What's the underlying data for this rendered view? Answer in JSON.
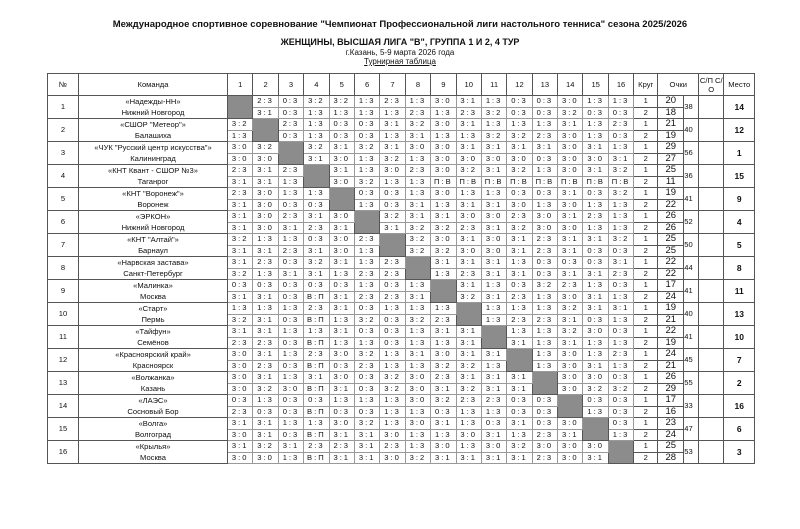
{
  "header": {
    "title": "Международное спортивное соревнование \"Чемпионат Профессиональной лиги настольного тенниса\" сезона 2025/2026",
    "subtitle": "ЖЕНЩИНЫ, ВЫСШАЯ ЛИГА \"В\", ГРУППА 1 И 2, 4 ТУР",
    "location": "г.Казань, 5-9 марта 2026 года",
    "table_title": "Турнирная таблица"
  },
  "columns": {
    "num": "№",
    "team": "Команда",
    "rounds": [
      "1",
      "2",
      "3",
      "4",
      "5",
      "6",
      "7",
      "8",
      "9",
      "10",
      "11",
      "12",
      "13",
      "14",
      "15",
      "16"
    ],
    "round": "Круг",
    "points": "Очки",
    "sp": "С/П С/О",
    "place": "Место"
  },
  "teams": [
    {
      "num": "1",
      "name": "«Надежды-НН»",
      "city": "Нижний Новгород",
      "r1": [
        "",
        "2:3",
        "0:3",
        "3:2",
        "3:2",
        "1:3",
        "2:3",
        "1:3",
        "3:0",
        "3:1",
        "1:3",
        "0:3",
        "0:3",
        "3:0",
        "1:3",
        "1:3"
      ],
      "r2": [
        "",
        "3:1",
        "0:3",
        "1:3",
        "1:3",
        "1:3",
        "1:3",
        "2:3",
        "1:3",
        "2:3",
        "3:2",
        "0:3",
        "0:3",
        "3:2",
        "0:3",
        "0:3"
      ],
      "p1": "20",
      "p2": "18",
      "total": "38",
      "sp": "",
      "place": "14"
    },
    {
      "num": "2",
      "name": "«СШОР \"Метеор\"»",
      "city": "Балашиха",
      "r1": [
        "3:2",
        "",
        "2:3",
        "1:3",
        "0:3",
        "0:3",
        "3:1",
        "3:2",
        "3:0",
        "3:1",
        "1:3",
        "1:3",
        "1:3",
        "3:1",
        "1:3",
        "2:3"
      ],
      "r2": [
        "1:3",
        "",
        "0:3",
        "1:3",
        "0:3",
        "0:3",
        "1:3",
        "3:1",
        "1:3",
        "1:3",
        "3:2",
        "3:2",
        "2:3",
        "3:0",
        "1:3",
        "0:3"
      ],
      "p1": "21",
      "p2": "19",
      "total": "40",
      "sp": "",
      "place": "12"
    },
    {
      "num": "3",
      "name": "«ЧУК \"Русский центр искусства\"»",
      "city": "Калининград",
      "r1": [
        "3:0",
        "3:2",
        "",
        "3:2",
        "3:1",
        "3:2",
        "3:1",
        "3:0",
        "3:0",
        "3:1",
        "3:1",
        "3:1",
        "3:1",
        "3:0",
        "3:1",
        "1:3"
      ],
      "r2": [
        "3:0",
        "3:0",
        "",
        "3:1",
        "3:0",
        "1:3",
        "3:2",
        "1:3",
        "3:0",
        "3:0",
        "3:0",
        "3:0",
        "0:3",
        "3:0",
        "3:0",
        "3:1"
      ],
      "p1": "29",
      "p2": "27",
      "total": "56",
      "sp": "",
      "place": "1"
    },
    {
      "num": "4",
      "name": "«КНТ Квант - СШОР №3»",
      "city": "Таганрог",
      "r1": [
        "2:3",
        "3:1",
        "2:3",
        "",
        "3:1",
        "1:3",
        "3:0",
        "2:3",
        "3:0",
        "3:2",
        "3:1",
        "3:2",
        "1:3",
        "3:0",
        "3:1",
        "3:2"
      ],
      "r2": [
        "3:1",
        "3:1",
        "1:3",
        "",
        "3:0",
        "3:2",
        "1:3",
        "1:3",
        "П:В",
        "П:В",
        "П:В",
        "П:В",
        "П:В",
        "П:В",
        "П:В",
        "П:В"
      ],
      "p1": "25",
      "p2": "11",
      "total": "36",
      "sp": "",
      "place": "15"
    },
    {
      "num": "5",
      "name": "«КНТ \"Воронеж\"»",
      "city": "Воронеж",
      "r1": [
        "2:3",
        "3:0",
        "1:3",
        "1:3",
        "",
        "0:3",
        "0:3",
        "1:3",
        "3:0",
        "1:3",
        "1:3",
        "0:3",
        "0:3",
        "3:1",
        "0:3",
        "3:2"
      ],
      "r2": [
        "3:1",
        "3:0",
        "0:3",
        "0:3",
        "",
        "1:3",
        "0:3",
        "3:1",
        "1:3",
        "3:1",
        "3:1",
        "3:0",
        "1:3",
        "3:0",
        "1:3",
        "1:3"
      ],
      "p1": "19",
      "p2": "22",
      "total": "41",
      "sp": "",
      "place": "9"
    },
    {
      "num": "6",
      "name": "«ЭРКОН»",
      "city": "Нижний Новгород",
      "r1": [
        "3:1",
        "3:0",
        "2:3",
        "3:1",
        "3:0",
        "",
        "3:2",
        "3:1",
        "3:1",
        "3:0",
        "3:0",
        "2:3",
        "3:0",
        "3:1",
        "2:3",
        "1:3"
      ],
      "r2": [
        "3:1",
        "3:0",
        "3:1",
        "2:3",
        "3:1",
        "",
        "3:1",
        "3:2",
        "3:2",
        "2:3",
        "3:1",
        "3:2",
        "3:0",
        "3:0",
        "1:3",
        "1:3"
      ],
      "p1": "26",
      "p2": "26",
      "total": "52",
      "sp": "",
      "place": "4"
    },
    {
      "num": "7",
      "name": "«КНТ \"Алтай\"»",
      "city": "Барнаул",
      "r1": [
        "3:2",
        "1:3",
        "1:3",
        "0:3",
        "3:0",
        "2:3",
        "",
        "3:2",
        "3:0",
        "3:1",
        "3:0",
        "3:1",
        "2:3",
        "3:1",
        "3:1",
        "3:2"
      ],
      "r2": [
        "3:1",
        "3:1",
        "2:3",
        "3:1",
        "3:0",
        "1:3",
        "",
        "3:2",
        "3:2",
        "3:0",
        "3:0",
        "3:1",
        "2:3",
        "3:1",
        "0:3",
        "0:3"
      ],
      "p1": "25",
      "p2": "25",
      "total": "50",
      "sp": "",
      "place": "5"
    },
    {
      "num": "8",
      "name": "«Нарвская застава»",
      "city": "Санкт-Петербург",
      "r1": [
        "3:1",
        "2:3",
        "0:3",
        "3:2",
        "3:1",
        "1:3",
        "2:3",
        "",
        "3:1",
        "3:1",
        "3:1",
        "1:3",
        "0:3",
        "0:3",
        "0:3",
        "3:1"
      ],
      "r2": [
        "3:2",
        "1:3",
        "3:1",
        "3:1",
        "1:3",
        "2:3",
        "2:3",
        "",
        "1:3",
        "2:3",
        "3:1",
        "3:1",
        "0:3",
        "3:1",
        "3:1",
        "2:3"
      ],
      "p1": "22",
      "p2": "22",
      "total": "44",
      "sp": "",
      "place": "8"
    },
    {
      "num": "9",
      "name": "«Малинка»",
      "city": "Москва",
      "r1": [
        "0:3",
        "0:3",
        "0:3",
        "0:3",
        "0:3",
        "1:3",
        "0:3",
        "1:3",
        "",
        "3:1",
        "1:3",
        "0:3",
        "3:2",
        "2:3",
        "1:3",
        "0:3"
      ],
      "r2": [
        "3:1",
        "3:1",
        "0:3",
        "В:П",
        "3:1",
        "2:3",
        "2:3",
        "3:1",
        "",
        "3:2",
        "3:1",
        "2:3",
        "1:3",
        "3:0",
        "3:1",
        "1:3"
      ],
      "p1": "17",
      "p2": "24",
      "total": "41",
      "sp": "",
      "place": "11"
    },
    {
      "num": "10",
      "name": "«Старт»",
      "city": "Пермь",
      "r1": [
        "1:3",
        "1:3",
        "1:3",
        "2:3",
        "3:1",
        "0:3",
        "1:3",
        "1:3",
        "1:3",
        "",
        "1:3",
        "1:3",
        "1:3",
        "3:2",
        "3:1",
        "3:1"
      ],
      "r2": [
        "3:2",
        "3:1",
        "0:3",
        "В:П",
        "1:3",
        "3:2",
        "0:3",
        "3:2",
        "2:3",
        "",
        "1:3",
        "2:3",
        "2:3",
        "3:1",
        "0:3",
        "1:3"
      ],
      "p1": "19",
      "p2": "21",
      "total": "40",
      "sp": "",
      "place": "13"
    },
    {
      "num": "11",
      "name": "«Тайфун»",
      "city": "Семёнов",
      "r1": [
        "3:1",
        "3:1",
        "1:3",
        "1:3",
        "3:1",
        "0:3",
        "0:3",
        "1:3",
        "3:1",
        "3:1",
        "",
        "1:3",
        "1:3",
        "3:2",
        "3:0",
        "0:3"
      ],
      "r2": [
        "2:3",
        "2:3",
        "0:3",
        "В:П",
        "1:3",
        "1:3",
        "0:3",
        "1:3",
        "1:3",
        "3:1",
        "",
        "3:1",
        "1:3",
        "3:1",
        "1:3",
        "1:3"
      ],
      "p1": "22",
      "p2": "19",
      "total": "41",
      "sp": "",
      "place": "10"
    },
    {
      "num": "12",
      "name": "«Красноярский край»",
      "city": "Красноярск",
      "r1": [
        "3:0",
        "3:1",
        "1:3",
        "2:3",
        "3:0",
        "3:2",
        "1:3",
        "3:1",
        "3:0",
        "3:1",
        "3:1",
        "",
        "1:3",
        "3:0",
        "1:3",
        "2:3"
      ],
      "r2": [
        "3:0",
        "2:3",
        "0:3",
        "В:П",
        "0:3",
        "2:3",
        "1:3",
        "1:3",
        "3:2",
        "3:2",
        "1:3",
        "",
        "1:3",
        "3:0",
        "3:1",
        "1:3"
      ],
      "p1": "24",
      "p2": "21",
      "total": "45",
      "sp": "",
      "place": "7"
    },
    {
      "num": "13",
      "name": "«Волжанка»",
      "city": "Казань",
      "r1": [
        "3:0",
        "3:1",
        "1:3",
        "3:1",
        "3:0",
        "0:3",
        "3:2",
        "3:0",
        "2:3",
        "3:1",
        "3:1",
        "3:1",
        "",
        "3:0",
        "3:0",
        "0:3"
      ],
      "r2": [
        "3:0",
        "3:2",
        "3:0",
        "В:П",
        "3:1",
        "0:3",
        "3:2",
        "3:0",
        "3:1",
        "3:2",
        "3:1",
        "3:1",
        "",
        "3:0",
        "3:2",
        "3:2"
      ],
      "p1": "26",
      "p2": "29",
      "total": "55",
      "sp": "",
      "place": "2"
    },
    {
      "num": "14",
      "name": "«ЛАЭС»",
      "city": "Сосновый Бор",
      "r1": [
        "0:3",
        "1:3",
        "0:3",
        "0:3",
        "1:3",
        "1:3",
        "1:3",
        "3:0",
        "3:2",
        "2:3",
        "2:3",
        "0:3",
        "0:3",
        "",
        "0:3",
        "0:3"
      ],
      "r2": [
        "2:3",
        "0:3",
        "0:3",
        "В:П",
        "0:3",
        "0:3",
        "1:3",
        "1:3",
        "0:3",
        "1:3",
        "1:3",
        "0:3",
        "0:3",
        "",
        "1:3",
        "0:3"
      ],
      "p1": "17",
      "p2": "16",
      "total": "33",
      "sp": "",
      "place": "16"
    },
    {
      "num": "15",
      "name": "«Волга»",
      "city": "Волгоград",
      "r1": [
        "3:1",
        "3:1",
        "1:3",
        "1:3",
        "3:0",
        "3:2",
        "1:3",
        "3:0",
        "3:1",
        "1:3",
        "0:3",
        "3:1",
        "0:3",
        "3:0",
        "",
        "0:3"
      ],
      "r2": [
        "3:0",
        "3:1",
        "0:3",
        "В:П",
        "3:1",
        "3:1",
        "3:0",
        "1:3",
        "1:3",
        "3:0",
        "3:1",
        "1:3",
        "2:3",
        "3:1",
        "",
        "1:3"
      ],
      "p1": "23",
      "p2": "24",
      "total": "47",
      "sp": "",
      "place": "6"
    },
    {
      "num": "16",
      "name": "«Крылья»",
      "city": "Москва",
      "r1": [
        "3:1",
        "3:2",
        "3:1",
        "2:3",
        "2:3",
        "3:1",
        "2:3",
        "1:3",
        "3:0",
        "1:3",
        "3:0",
        "3:2",
        "3:0",
        "3:0",
        "3:0",
        ""
      ],
      "r2": [
        "3:0",
        "3:0",
        "1:3",
        "В:П",
        "3:1",
        "3:1",
        "3:0",
        "3:2",
        "3:1",
        "3:1",
        "3:1",
        "3:1",
        "2:3",
        "3:0",
        "3:1",
        ""
      ],
      "p1": "25",
      "p2": "28",
      "total": "53",
      "sp": "",
      "place": "3"
    }
  ],
  "round_labels": [
    "1",
    "2"
  ]
}
